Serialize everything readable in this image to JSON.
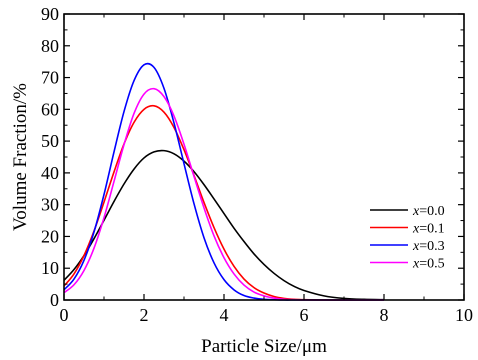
{
  "chart_data": {
    "type": "line",
    "title": "",
    "xlabel": "Particle Size/μm",
    "ylabel": "Volume Fraction/%",
    "xlim": [
      0,
      10
    ],
    "ylim": [
      0,
      90
    ],
    "x_ticks": [
      0,
      2,
      4,
      6,
      8,
      10
    ],
    "y_ticks": [
      0,
      10,
      20,
      30,
      40,
      50,
      60,
      70,
      80,
      90
    ],
    "grid": false,
    "legend_position": "bottom-right",
    "x": [
      0,
      0.25,
      0.5,
      0.75,
      1.0,
      1.25,
      1.5,
      1.75,
      2.0,
      2.25,
      2.5,
      2.75,
      3.0,
      3.25,
      3.5,
      3.75,
      4.0,
      4.25,
      4.5,
      4.75,
      5.0,
      5.25,
      5.5,
      5.75,
      6.0,
      6.5,
      7.0,
      7.5,
      8.0
    ],
    "series": [
      {
        "name": "x=0.0",
        "var": "x",
        "value_label": "=0.0",
        "color": "#000000",
        "values": [
          6.2,
          9.6,
          14.0,
          19.3,
          25.1,
          31.0,
          36.5,
          41.2,
          44.7,
          46.6,
          47.0,
          46.0,
          43.7,
          40.4,
          36.3,
          31.8,
          27.2,
          22.6,
          18.4,
          14.5,
          11.2,
          8.4,
          6.1,
          4.3,
          3.0,
          1.3,
          0.5,
          0.2,
          0.1
        ]
      },
      {
        "name": "x=0.1",
        "var": "x",
        "value_label": "=0.1",
        "color": "#ff0000",
        "values": [
          4.4,
          8.2,
          14.0,
          21.7,
          30.8,
          40.3,
          49.1,
          55.9,
          60.0,
          61.1,
          59.1,
          54.3,
          47.3,
          39.2,
          30.7,
          22.8,
          16.0,
          10.6,
          6.6,
          3.9,
          2.2,
          1.1,
          0.5,
          0.2,
          0.1,
          0.0,
          0.0,
          0.0,
          0.0
        ]
      },
      {
        "name": "x=0.3",
        "var": "x",
        "value_label": "=0.3",
        "color": "#0000ff",
        "values": [
          3.2,
          6.6,
          12.5,
          21.4,
          33.2,
          46.6,
          59.3,
          69.0,
          74.0,
          73.2,
          66.6,
          55.7,
          42.9,
          30.3,
          19.6,
          11.7,
          6.4,
          3.2,
          1.4,
          0.6,
          0.2,
          0.1,
          0.0,
          0.0,
          0.0,
          0.0,
          0.0,
          0.0,
          0.0
        ]
      },
      {
        "name": "x=0.5",
        "var": "x",
        "value_label": "=0.5",
        "color": "#ff00ff",
        "values": [
          2.3,
          4.8,
          9.3,
          16.3,
          25.9,
          37.3,
          48.9,
          58.7,
          64.8,
          66.5,
          64.0,
          57.9,
          49.0,
          38.9,
          29.0,
          20.2,
          13.3,
          8.2,
          4.7,
          2.5,
          1.3,
          0.6,
          0.2,
          0.1,
          0.0,
          0.0,
          0.0,
          0.0,
          0.0
        ]
      }
    ]
  }
}
